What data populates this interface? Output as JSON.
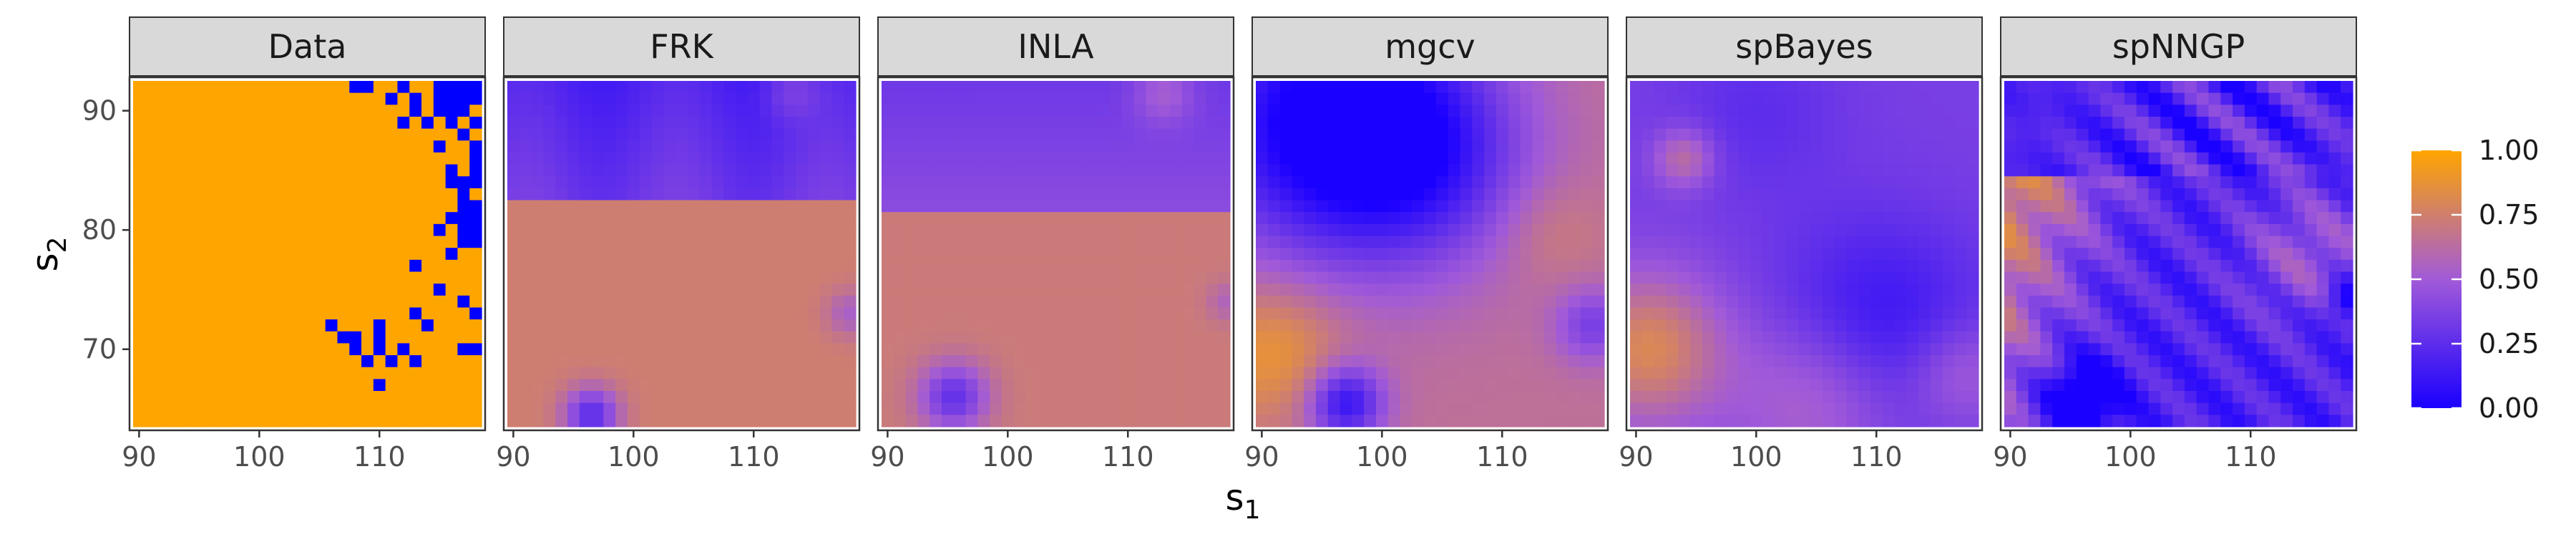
{
  "chart_data": {
    "type": "heatmap",
    "layout": "faceted",
    "facets": [
      {
        "name": "Data",
        "kind": "binary"
      },
      {
        "name": "FRK",
        "kind": "smooth"
      },
      {
        "name": "INLA",
        "kind": "smooth"
      },
      {
        "name": "mgcv",
        "kind": "smooth"
      },
      {
        "name": "spBayes",
        "kind": "smooth"
      },
      {
        "name": "spNNGP",
        "kind": "smooth"
      }
    ],
    "xlabel": "s",
    "xlabel_subscript": "1",
    "ylabel": "s",
    "ylabel_subscript": "2",
    "xlim": [
      89.5,
      118.5
    ],
    "ylim": [
      63.5,
      92.5
    ],
    "x_ticks": [
      90,
      100,
      110
    ],
    "x_tick_labels": [
      "90",
      "100",
      "110"
    ],
    "y_ticks": [
      70,
      80,
      90
    ],
    "y_tick_labels": [
      "70",
      "80",
      "90"
    ],
    "grid_resolution": 29,
    "color_scale": {
      "low": 0,
      "high": 1,
      "low_color": "#1a00ff",
      "mid_color": "#a15ad8",
      "high_color": "#ffa500",
      "breaks": [
        0,
        0.25,
        0.5,
        0.75,
        1
      ],
      "break_labels": [
        "0.00",
        "0.25",
        "0.50",
        "0.75",
        "1.00"
      ]
    },
    "data_colors": {
      "zero": "#0000ff",
      "one": "#ffa500"
    },
    "legend_position": "right",
    "strip_fill": "#d9d9d9"
  }
}
